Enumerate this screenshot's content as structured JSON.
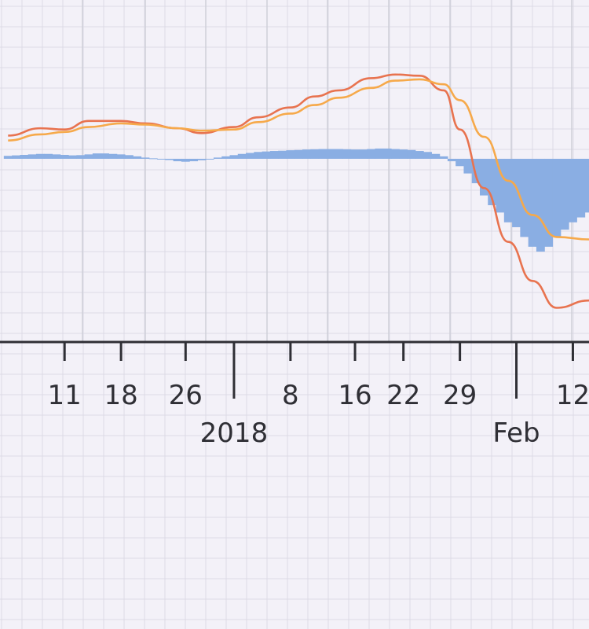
{
  "chart_data": {
    "type": "line",
    "title": "",
    "xlabel": "",
    "ylabel": "",
    "grid": true,
    "legend": "none",
    "x_axis": {
      "day_ticks": [
        {
          "label": "11",
          "date": "2017-12-11"
        },
        {
          "label": "18",
          "date": "2017-12-18"
        },
        {
          "label": "26",
          "date": "2017-12-26"
        },
        {
          "label": "8",
          "date": "2018-01-08"
        },
        {
          "label": "16",
          "date": "2018-01-16"
        },
        {
          "label": "22",
          "date": "2018-01-22"
        },
        {
          "label": "29",
          "date": "2018-01-29"
        },
        {
          "label": "12",
          "date": "2018-02-12"
        }
      ],
      "minor_ticks": [
        "2017-12-11",
        "2017-12-18",
        "2017-12-26",
        "2018-01-08",
        "2018-01-16",
        "2018-01-22",
        "2018-01-29",
        "2018-02-12"
      ],
      "major_ticks": [
        {
          "label": "2018",
          "date": "2018-01-01"
        },
        {
          "label": "Feb",
          "date": "2018-02-05"
        }
      ]
    },
    "colors": {
      "line_fast": "#e8734f",
      "line_slow": "#f6a94a",
      "histogram": "#8aaee3",
      "axis": "#2f2f35"
    },
    "series": [
      {
        "kind": "line",
        "x": [
          "2017-12-04",
          "2017-12-08",
          "2017-12-11",
          "2017-12-14",
          "2017-12-18",
          "2017-12-21",
          "2017-12-25",
          "2017-12-28",
          "2018-01-01",
          "2018-01-04",
          "2018-01-08",
          "2018-01-11",
          "2018-01-14",
          "2018-01-18",
          "2018-01-21",
          "2018-01-24",
          "2018-01-27",
          "2018-01-29",
          "2018-02-01",
          "2018-02-04",
          "2018-02-07",
          "2018-02-10",
          "2018-02-14"
        ],
        "values": [
          0.95,
          1.25,
          1.2,
          1.55,
          1.55,
          1.45,
          1.25,
          1.05,
          1.3,
          1.7,
          2.1,
          2.55,
          2.8,
          3.3,
          3.45,
          3.4,
          2.8,
          1.2,
          -1.2,
          -3.4,
          -5.0,
          -6.1,
          -5.8
        ]
      },
      {
        "kind": "line",
        "x": [
          "2017-12-04",
          "2017-12-08",
          "2017-12-11",
          "2017-12-14",
          "2017-12-18",
          "2017-12-21",
          "2017-12-25",
          "2017-12-28",
          "2018-01-01",
          "2018-01-04",
          "2018-01-08",
          "2018-01-11",
          "2018-01-14",
          "2018-01-18",
          "2018-01-21",
          "2018-01-24",
          "2018-01-27",
          "2018-01-29",
          "2018-02-01",
          "2018-02-04",
          "2018-02-07",
          "2018-02-10",
          "2018-02-14"
        ],
        "values": [
          0.75,
          1.0,
          1.1,
          1.3,
          1.45,
          1.4,
          1.25,
          1.15,
          1.2,
          1.5,
          1.85,
          2.2,
          2.5,
          2.9,
          3.2,
          3.25,
          3.05,
          2.4,
          0.9,
          -0.9,
          -2.3,
          -3.2,
          -3.3
        ]
      },
      {
        "kind": "histogram",
        "x": [
          "2017-12-04",
          "2017-12-05",
          "2017-12-06",
          "2017-12-07",
          "2017-12-08",
          "2017-12-09",
          "2017-12-10",
          "2017-12-11",
          "2017-12-12",
          "2017-12-13",
          "2017-12-14",
          "2017-12-15",
          "2017-12-16",
          "2017-12-17",
          "2017-12-18",
          "2017-12-19",
          "2017-12-20",
          "2017-12-21",
          "2017-12-22",
          "2017-12-23",
          "2017-12-24",
          "2017-12-25",
          "2017-12-26",
          "2017-12-27",
          "2017-12-28",
          "2017-12-29",
          "2017-12-30",
          "2017-12-31",
          "2018-01-01",
          "2018-01-02",
          "2018-01-03",
          "2018-01-04",
          "2018-01-05",
          "2018-01-06",
          "2018-01-07",
          "2018-01-08",
          "2018-01-09",
          "2018-01-10",
          "2018-01-11",
          "2018-01-12",
          "2018-01-13",
          "2018-01-14",
          "2018-01-15",
          "2018-01-16",
          "2018-01-17",
          "2018-01-18",
          "2018-01-19",
          "2018-01-20",
          "2018-01-21",
          "2018-01-22",
          "2018-01-23",
          "2018-01-24",
          "2018-01-25",
          "2018-01-26",
          "2018-01-27",
          "2018-01-28",
          "2018-01-29",
          "2018-01-30",
          "2018-01-31",
          "2018-02-01",
          "2018-02-02",
          "2018-02-03",
          "2018-02-04",
          "2018-02-05",
          "2018-02-06",
          "2018-02-07",
          "2018-02-08",
          "2018-02-09",
          "2018-02-10",
          "2018-02-11",
          "2018-02-12",
          "2018-02-13",
          "2018-02-14"
        ],
        "values": [
          0.12,
          0.14,
          0.16,
          0.18,
          0.2,
          0.2,
          0.18,
          0.16,
          0.14,
          0.15,
          0.18,
          0.22,
          0.22,
          0.2,
          0.18,
          0.15,
          0.1,
          0.05,
          0.02,
          0.0,
          -0.05,
          -0.1,
          -0.12,
          -0.1,
          -0.06,
          -0.02,
          0.05,
          0.1,
          0.15,
          0.2,
          0.24,
          0.28,
          0.3,
          0.32,
          0.33,
          0.35,
          0.36,
          0.38,
          0.39,
          0.4,
          0.4,
          0.4,
          0.39,
          0.38,
          0.38,
          0.4,
          0.42,
          0.42,
          0.4,
          0.38,
          0.36,
          0.32,
          0.28,
          0.2,
          0.1,
          -0.1,
          -0.3,
          -0.6,
          -1.0,
          -1.5,
          -1.9,
          -2.2,
          -2.6,
          -2.8,
          -3.2,
          -3.6,
          -3.8,
          -3.6,
          -3.2,
          -2.9,
          -2.6,
          -2.4,
          -2.2
        ]
      }
    ],
    "x_range": [
      "2017-12-03",
      "2018-02-14"
    ],
    "ylim": [
      -7.5,
      6.5
    ]
  }
}
